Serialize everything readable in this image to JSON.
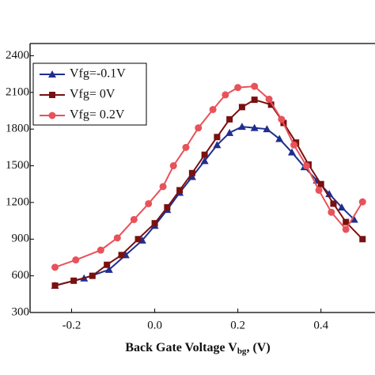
{
  "chart_data": {
    "type": "line",
    "xlabel": "Back Gate Voltage V",
    "xlabel_sub": "bg",
    "xlabel_tail": ", (V)",
    "xlim": [
      -0.3,
      0.53
    ],
    "ylim": [
      300,
      2500
    ],
    "xticks": [
      -0.2,
      {
        "value": 0,
        "label": "0.0"
      },
      0.2,
      0.4
    ],
    "yticks": [
      300,
      600,
      900,
      1200,
      1500,
      1800,
      2100,
      2400
    ],
    "legend": "upper left",
    "series": [
      {
        "name": "Vfg=-0.1V",
        "color": "#1f2f8f",
        "marker": "triangle",
        "x": [
          -0.24,
          -0.17,
          -0.11,
          -0.07,
          -0.03,
          0.0,
          0.03,
          0.06,
          0.09,
          0.12,
          0.15,
          0.18,
          0.21,
          0.24,
          0.27,
          0.3,
          0.33,
          0.36,
          0.39,
          0.42,
          0.45,
          0.48
        ],
        "values": [
          520,
          580,
          650,
          770,
          890,
          1010,
          1140,
          1280,
          1410,
          1540,
          1670,
          1770,
          1820,
          1810,
          1800,
          1720,
          1610,
          1490,
          1380,
          1270,
          1160,
          1060
        ]
      },
      {
        "name": "Vfg= 0V",
        "color": "#7a1010",
        "marker": "square",
        "x": [
          -0.24,
          -0.195,
          -0.15,
          -0.115,
          -0.08,
          -0.04,
          0.0,
          0.03,
          0.06,
          0.09,
          0.12,
          0.15,
          0.18,
          0.21,
          0.24,
          0.28,
          0.31,
          0.34,
          0.37,
          0.4,
          0.43,
          0.46,
          0.5
        ],
        "values": [
          520,
          560,
          600,
          690,
          770,
          900,
          1030,
          1160,
          1300,
          1440,
          1590,
          1735,
          1880,
          1980,
          2040,
          2000,
          1850,
          1690,
          1510,
          1350,
          1190,
          1040,
          900
        ]
      },
      {
        "name": "Vfg= 0.2V",
        "color": "#e8525a",
        "marker": "circle",
        "x": [
          -0.24,
          -0.19,
          -0.13,
          -0.09,
          -0.05,
          -0.015,
          0.02,
          0.045,
          0.075,
          0.105,
          0.14,
          0.17,
          0.2,
          0.24,
          0.275,
          0.305,
          0.335,
          0.365,
          0.395,
          0.425,
          0.46,
          0.5
        ],
        "values": [
          670,
          730,
          810,
          910,
          1060,
          1190,
          1330,
          1500,
          1650,
          1810,
          1960,
          2080,
          2140,
          2150,
          2045,
          1880,
          1670,
          1500,
          1300,
          1120,
          980,
          1205
        ]
      }
    ]
  }
}
